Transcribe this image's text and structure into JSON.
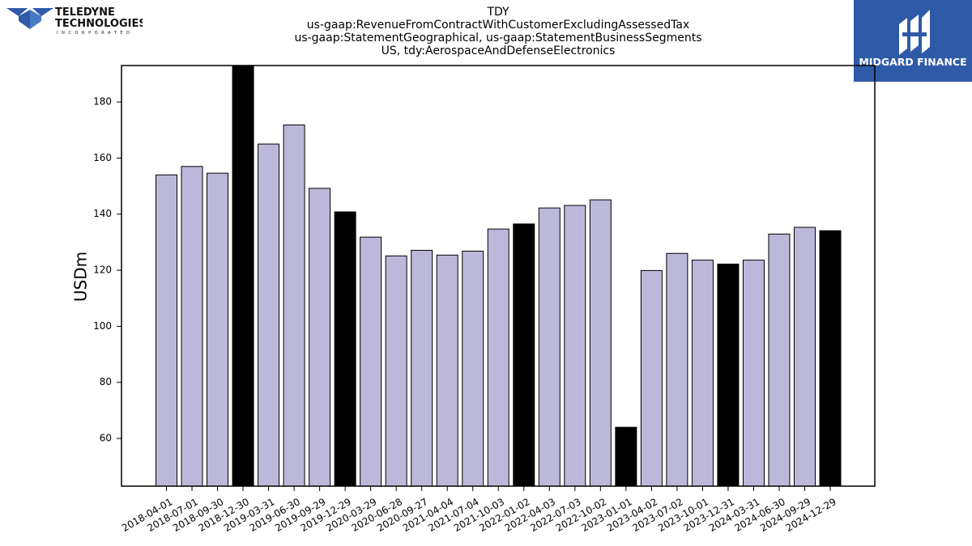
{
  "logos": {
    "left": {
      "name_line1": "TELEDYNE",
      "name_line2": "TECHNOLOGIES",
      "tagline": "INCORPORATED"
    },
    "right": {
      "text": "MIDGARD FINANCE"
    }
  },
  "header": {
    "line1": "TDY",
    "line2": "us-gaap:RevenueFromContractWithCustomerExcludingAssessedTax",
    "line3": "us-gaap:StatementGeographical, us-gaap:StatementBusinessSegments",
    "line4": "US, tdy:AerospaceAndDefenseElectronics"
  },
  "colors": {
    "bar_default": "#bcb8da",
    "bar_highlight": "#000000",
    "brand_blue": "#2f5aa8"
  },
  "chart_data": {
    "type": "bar",
    "ylabel": "USDm",
    "xlabel": "",
    "ylim": [
      43,
      193
    ],
    "yticks": [
      60,
      80,
      100,
      120,
      140,
      160,
      180
    ],
    "grid": false,
    "categories": [
      "2018-04-01",
      "2018-07-01",
      "2018-09-30",
      "2018-12-30",
      "2019-03-31",
      "2019-06-30",
      "2019-09-29",
      "2019-12-29",
      "2020-03-29",
      "2020-06-28",
      "2020-09-27",
      "2021-04-04",
      "2021-07-04",
      "2021-10-03",
      "2022-01-02",
      "2022-04-03",
      "2022-07-03",
      "2022-10-02",
      "2023-01-01",
      "2023-04-02",
      "2023-07-02",
      "2023-10-01",
      "2023-12-31",
      "2024-03-31",
      "2024-06-30",
      "2024-09-29",
      "2024-12-29"
    ],
    "values": [
      154,
      157,
      154.6,
      195,
      165,
      171.8,
      149.2,
      140.8,
      131.8,
      125.1,
      127.1,
      125.4,
      126.8,
      134.7,
      136.5,
      142.2,
      143.1,
      145.1,
      64,
      119.9,
      126,
      123.6,
      122.2,
      123.6,
      132.9,
      135.3,
      134.1
    ],
    "highlight": [
      false,
      false,
      false,
      true,
      false,
      false,
      false,
      true,
      false,
      false,
      false,
      false,
      false,
      false,
      true,
      false,
      false,
      false,
      true,
      false,
      false,
      false,
      true,
      false,
      false,
      false,
      true
    ]
  }
}
